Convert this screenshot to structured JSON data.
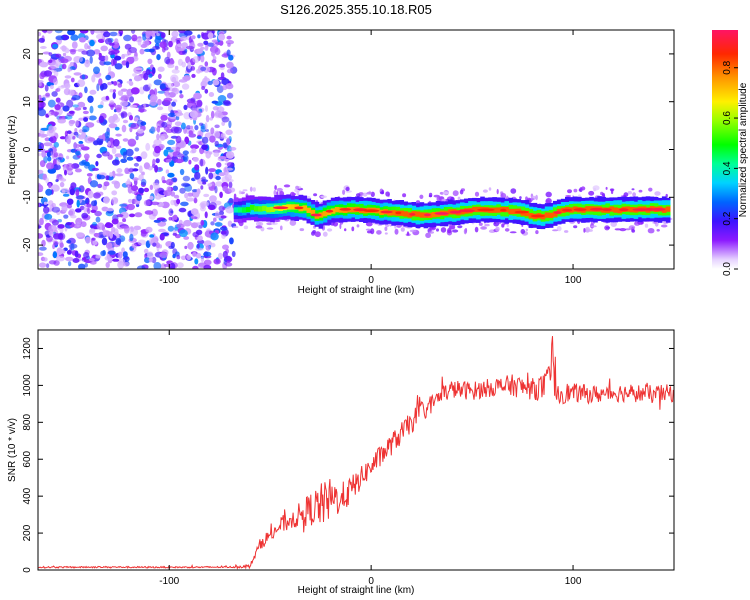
{
  "page": {
    "title": "S126.2025.355.10.18.R05"
  },
  "chart_data": [
    {
      "type": "heatmap",
      "xlabel": "Height of straight line (km)",
      "ylabel": "Frequency (Hz)",
      "xlim": [
        -165,
        150
      ],
      "ylim": [
        -25,
        25
      ],
      "xticks": [
        -100,
        0,
        100
      ],
      "yticks": [
        -20,
        -10,
        0,
        10,
        20
      ],
      "grid": false,
      "colorbar": {
        "label": "Normalized spectral amplitude",
        "range": [
          0,
          0.95
        ],
        "ticks": [
          0.0,
          0.2,
          0.4,
          0.6,
          0.8
        ],
        "tick_labels": [
          "0.0",
          "0.2",
          "0.4",
          "0.6",
          "0.8"
        ]
      },
      "noise_region": {
        "x_range": [
          -165,
          -68
        ],
        "amplitude_range": [
          0.05,
          0.3
        ]
      },
      "signal_ridge": {
        "x": [
          -68,
          -60,
          -50,
          -42,
          -36,
          -32,
          -26,
          -20,
          -12,
          -5,
          5,
          15,
          25,
          32,
          40,
          50,
          60,
          70,
          76,
          80,
          85,
          90,
          95,
          100,
          110,
          120,
          130,
          140,
          148
        ],
        "frequency": [
          -12.8,
          -12.3,
          -12.5,
          -12.0,
          -12.2,
          -12.5,
          -14.0,
          -12.8,
          -12.5,
          -12.6,
          -13.0,
          -13.3,
          -13.8,
          -13.5,
          -13.2,
          -12.7,
          -12.6,
          -12.8,
          -13.2,
          -13.8,
          -14.0,
          -13.5,
          -12.8,
          -12.6,
          -12.5,
          -12.6,
          -12.6,
          -12.5,
          -12.6
        ],
        "amplitude": [
          0.45,
          0.6,
          0.7,
          0.8,
          0.85,
          0.85,
          0.9,
          0.85,
          0.9,
          0.92,
          0.9,
          0.95,
          0.95,
          0.92,
          0.95,
          0.95,
          0.95,
          0.95,
          0.95,
          0.95,
          0.95,
          0.95,
          0.95,
          0.95,
          0.95,
          0.95,
          0.95,
          0.95,
          0.95
        ]
      }
    },
    {
      "type": "line",
      "xlabel": "Height of straight line (km)",
      "ylabel": "SNR (10 * v/v)",
      "xlim": [
        -165,
        150
      ],
      "ylim": [
        0,
        1300
      ],
      "xticks": [
        -100,
        0,
        100
      ],
      "yticks": [
        0,
        200,
        400,
        600,
        800,
        1000,
        1200
      ],
      "grid": false,
      "series": [
        {
          "color": "#ee3333",
          "x": [
            -165,
            -150,
            -130,
            -110,
            -90,
            -70,
            -60,
            -55,
            -50,
            -45,
            -40,
            -35,
            -30,
            -25,
            -20,
            -15,
            -10,
            -5,
            0,
            5,
            10,
            15,
            20,
            25,
            30,
            35,
            40,
            50,
            60,
            70,
            80,
            85,
            88,
            90,
            92,
            95,
            100,
            110,
            120,
            130,
            140,
            150
          ],
          "y": [
            15,
            15,
            16,
            15,
            15,
            16,
            20,
            140,
            190,
            240,
            270,
            300,
            330,
            350,
            380,
            390,
            430,
            500,
            560,
            620,
            680,
            740,
            800,
            860,
            900,
            950,
            980,
            970,
            990,
            1000,
            980,
            990,
            1000,
            1150,
            970,
            960,
            960,
            950,
            960,
            960,
            950,
            960
          ],
          "noise": [
            4,
            4,
            4,
            4,
            4,
            4,
            10,
            30,
            40,
            50,
            50,
            70,
            90,
            120,
            120,
            80,
            80,
            60,
            60,
            60,
            60,
            60,
            60,
            60,
            50,
            50,
            50,
            50,
            50,
            60,
            60,
            70,
            110,
            160,
            110,
            60,
            50,
            50,
            50,
            50,
            50,
            50
          ]
        }
      ]
    }
  ]
}
